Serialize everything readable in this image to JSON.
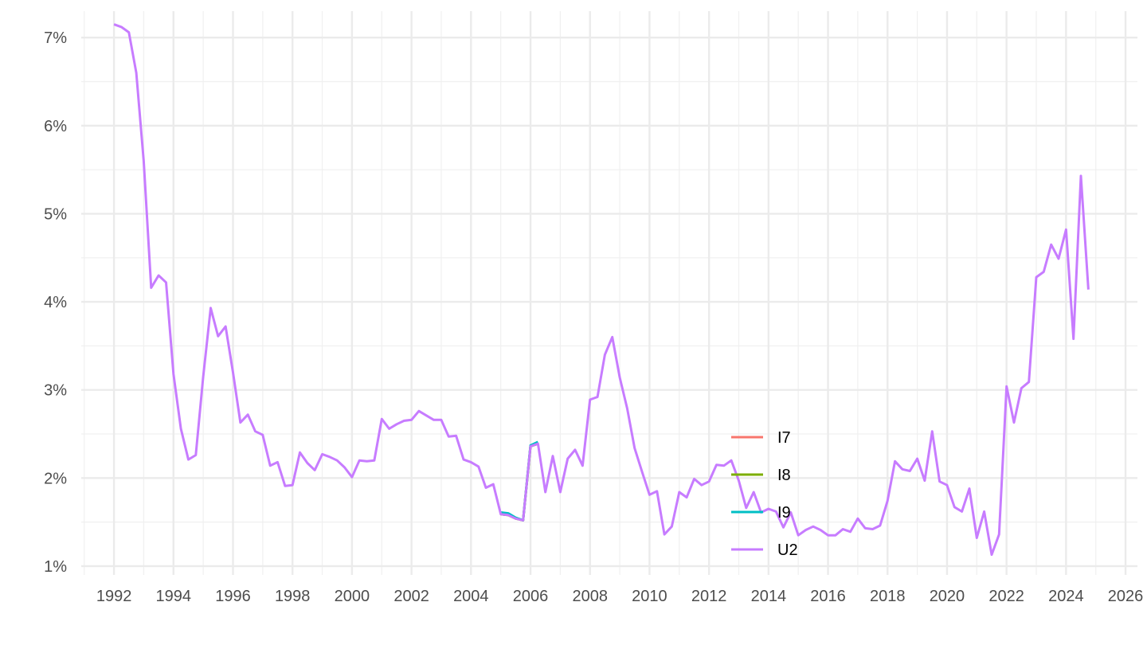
{
  "chart_data": {
    "type": "line",
    "title": "",
    "xlabel": "",
    "ylabel": "",
    "xlim": [
      1990.9,
      2026.4
    ],
    "ylim": [
      0.9,
      7.3
    ],
    "grid": true,
    "legend_position": "inside-bottom-center",
    "x_ticks": [
      1992,
      1994,
      1996,
      1998,
      2000,
      2002,
      2004,
      2006,
      2008,
      2010,
      2012,
      2014,
      2016,
      2018,
      2020,
      2022,
      2024,
      2026
    ],
    "x_tick_labels": [
      "1992",
      "1994",
      "1996",
      "1998",
      "2000",
      "2002",
      "2004",
      "2006",
      "2008",
      "2010",
      "2012",
      "2014",
      "2016",
      "2018",
      "2020",
      "2022",
      "2024",
      "2026"
    ],
    "y_ticks": [
      1,
      2,
      3,
      4,
      5,
      6,
      7
    ],
    "y_tick_labels": [
      "1%",
      "2%",
      "3%",
      "4%",
      "5%",
      "6%",
      "7%"
    ],
    "series": [
      {
        "name": "I7",
        "color": "#F8766D",
        "x": [
          2005.0,
          2005.25,
          2005.5,
          2005.75,
          2006.0,
          2006.25
        ],
        "y": [
          1.59,
          1.58,
          1.54,
          1.52,
          2.36,
          2.39
        ]
      },
      {
        "name": "I8",
        "color": "#7CAE00",
        "x": [
          2005.0,
          2005.25,
          2005.5,
          2005.75,
          2006.0,
          2006.25
        ],
        "y": [
          1.59,
          1.58,
          1.54,
          1.52,
          2.36,
          2.39
        ]
      },
      {
        "name": "I9",
        "color": "#00BFC4",
        "x": [
          2005.0,
          2005.25,
          2005.5,
          2005.75,
          2006.0,
          2006.25
        ],
        "y": [
          1.61,
          1.6,
          1.55,
          1.52,
          2.37,
          2.41
        ]
      },
      {
        "name": "U2",
        "color": "#C77CFF",
        "x": [
          1992.0,
          1992.25,
          1992.5,
          1992.75,
          1993.0,
          1993.25,
          1993.5,
          1993.75,
          1994.0,
          1994.25,
          1994.5,
          1994.75,
          1995.0,
          1995.25,
          1995.5,
          1995.75,
          1996.0,
          1996.25,
          1996.5,
          1996.75,
          1997.0,
          1997.25,
          1997.5,
          1997.75,
          1998.0,
          1998.25,
          1998.5,
          1998.75,
          1999.0,
          1999.25,
          1999.5,
          1999.75,
          2000.0,
          2000.25,
          2000.5,
          2000.75,
          2001.0,
          2001.25,
          2001.5,
          2001.75,
          2002.0,
          2002.25,
          2002.5,
          2002.75,
          2003.0,
          2003.25,
          2003.5,
          2003.75,
          2004.0,
          2004.25,
          2004.5,
          2004.75,
          2005.0,
          2005.25,
          2005.5,
          2005.75,
          2006.0,
          2006.25,
          2006.5,
          2006.75,
          2007.0,
          2007.25,
          2007.5,
          2007.75,
          2008.0,
          2008.25,
          2008.5,
          2008.75,
          2009.0,
          2009.25,
          2009.5,
          2009.75,
          2010.0,
          2010.25,
          2010.5,
          2010.75,
          2011.0,
          2011.25,
          2011.5,
          2011.75,
          2012.0,
          2012.25,
          2012.5,
          2012.75,
          2013.0,
          2013.25,
          2013.5,
          2013.75,
          2014.0,
          2014.25,
          2014.5,
          2014.75,
          2015.0,
          2015.25,
          2015.5,
          2015.75,
          2016.0,
          2016.25,
          2016.5,
          2016.75,
          2017.0,
          2017.25,
          2017.5,
          2017.75,
          2018.0,
          2018.25,
          2018.5,
          2018.75,
          2019.0,
          2019.25,
          2019.5,
          2019.75,
          2020.0,
          2020.25,
          2020.5,
          2020.75,
          2021.0,
          2021.25,
          2021.5,
          2021.75,
          2022.0,
          2022.25,
          2022.5,
          2022.75,
          2023.0,
          2023.25,
          2023.5,
          2023.75,
          2024.0,
          2024.25,
          2024.5,
          2024.75
        ],
        "y": [
          7.15,
          7.12,
          7.06,
          6.6,
          5.6,
          4.16,
          4.3,
          4.22,
          3.18,
          2.56,
          2.21,
          2.26,
          3.15,
          3.93,
          3.61,
          3.72,
          3.2,
          2.63,
          2.72,
          2.53,
          2.49,
          2.14,
          2.18,
          1.91,
          1.92,
          2.29,
          2.17,
          2.09,
          2.27,
          2.24,
          2.2,
          2.12,
          2.01,
          2.2,
          2.19,
          2.2,
          2.67,
          2.56,
          2.61,
          2.65,
          2.66,
          2.76,
          2.71,
          2.66,
          2.66,
          2.47,
          2.48,
          2.21,
          2.18,
          2.13,
          1.89,
          1.93,
          1.59,
          1.58,
          1.54,
          1.52,
          2.36,
          2.39,
          1.84,
          2.25,
          1.84,
          2.22,
          2.32,
          2.14,
          2.89,
          2.92,
          3.4,
          3.6,
          3.14,
          2.79,
          2.34,
          2.07,
          1.81,
          1.85,
          1.36,
          1.45,
          1.84,
          1.78,
          1.99,
          1.92,
          1.96,
          2.15,
          2.14,
          2.2,
          1.97,
          1.66,
          1.84,
          1.61,
          1.65,
          1.62,
          1.44,
          1.61,
          1.35,
          1.41,
          1.45,
          1.41,
          1.35,
          1.35,
          1.42,
          1.39,
          1.54,
          1.43,
          1.42,
          1.46,
          1.74,
          2.19,
          2.1,
          2.08,
          2.22,
          1.97,
          2.53,
          1.96,
          1.92,
          1.67,
          1.62,
          1.88,
          1.32,
          1.62,
          1.13,
          1.36,
          3.04,
          2.63,
          3.02,
          3.09,
          4.28,
          4.34,
          4.65,
          4.49,
          4.82,
          3.58,
          5.43,
          4.14
        ]
      }
    ]
  }
}
